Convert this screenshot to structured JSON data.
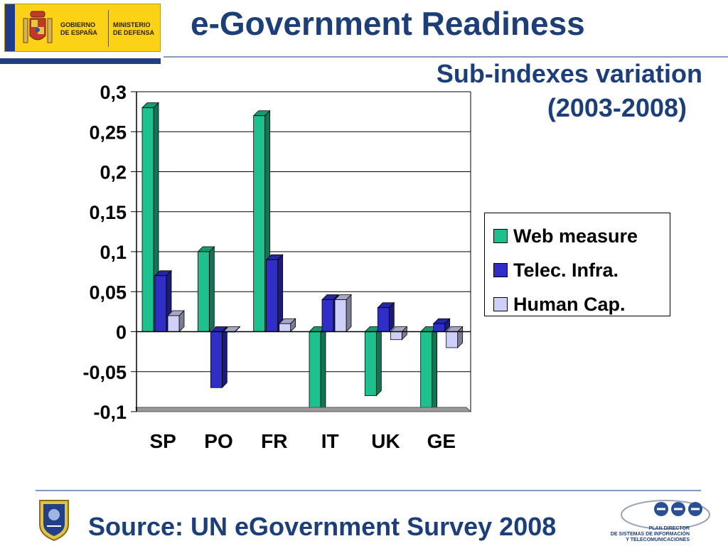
{
  "header": {
    "logo_left_line1": "GOBIERNO",
    "logo_left_line2": "DE ESPAÑA",
    "logo_right_line1": "MINISTERIO",
    "logo_right_line2": "DE DEFENSA",
    "title": "e-Government Readiness"
  },
  "footer": {
    "source": "Source: UN eGovernment Survey 2008",
    "plan_line1": "PLAN DIRECTOR",
    "plan_line2": "DE SISTEMAS DE INFORMACIÓN",
    "plan_line3": "Y TELECOMUNICACIONES"
  },
  "colors": {
    "title": "#1c3f7a",
    "web_measure": "#1ec08d",
    "telec_infra": "#2f2fc8",
    "human_cap": "#cfd0f7"
  },
  "chart_data": {
    "type": "bar",
    "title_line1": "Sub-indexes variation",
    "title_line2": "(2003-2008)",
    "categories": [
      "SP",
      "PO",
      "FR",
      "IT",
      "UK",
      "GE"
    ],
    "series": [
      {
        "name": "Web measure",
        "values": [
          0.28,
          0.1,
          0.27,
          -0.1,
          -0.08,
          -0.1
        ],
        "color": "#1ec08d"
      },
      {
        "name": "Telec. Infra.",
        "values": [
          0.07,
          -0.07,
          0.09,
          0.04,
          0.03,
          0.01
        ],
        "color": "#2f2fc8"
      },
      {
        "name": "Human Cap.",
        "values": [
          0.02,
          0.0,
          0.01,
          0.04,
          -0.01,
          -0.02
        ],
        "color": "#cfd0f7"
      }
    ],
    "ylim": [
      -0.1,
      0.3
    ],
    "yticks": [
      0.3,
      0.25,
      0.2,
      0.15,
      0.1,
      0.05,
      0,
      -0.05,
      -0.1
    ],
    "ytick_labels": [
      "0,3",
      "0,25",
      "0,2",
      "0,15",
      "0,1",
      "0,05",
      "0",
      "-0,05",
      "-0,1"
    ],
    "grid": true,
    "legend_position": "right"
  }
}
